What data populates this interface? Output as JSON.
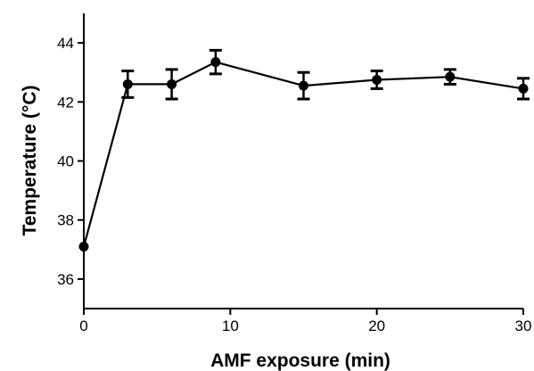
{
  "chart_data": {
    "type": "line",
    "title": "",
    "xlabel": "AMF exposure (min)",
    "ylabel": "Temperature (°C)",
    "xlim": [
      0,
      30
    ],
    "ylim": [
      35,
      45
    ],
    "xticks": [
      0,
      10,
      20,
      30
    ],
    "yticks": [
      36,
      38,
      40,
      42,
      44
    ],
    "grid": false,
    "legend": "none",
    "color": "#000000",
    "series": [
      {
        "x": [
          0,
          3,
          6,
          9,
          15,
          20,
          25,
          30
        ],
        "y": [
          37.1,
          42.6,
          42.6,
          43.35,
          42.55,
          42.75,
          42.85,
          42.45
        ],
        "error": [
          0,
          0.45,
          0.5,
          0.4,
          0.45,
          0.3,
          0.25,
          0.35
        ]
      }
    ]
  }
}
